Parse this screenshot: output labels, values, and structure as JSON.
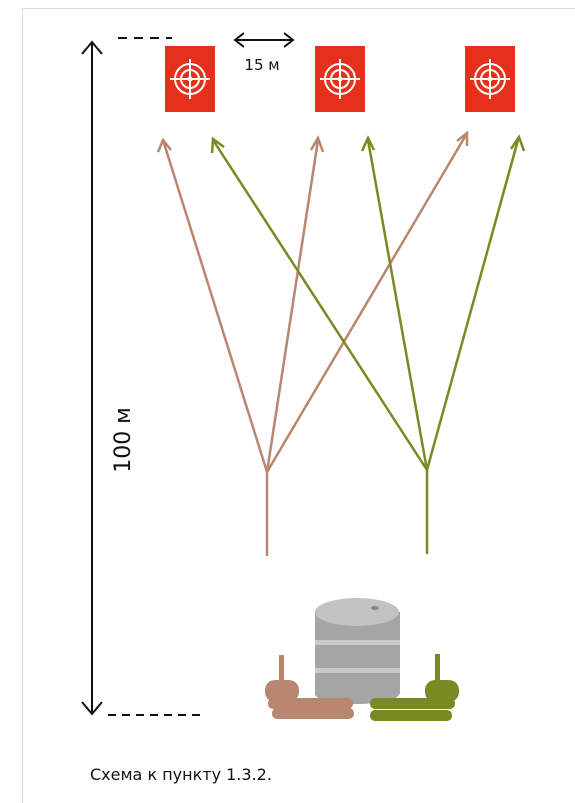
{
  "labels": {
    "spacing": "15 м",
    "distance": "100 м"
  },
  "caption": "Схема к пункту 1.3.2."
}
